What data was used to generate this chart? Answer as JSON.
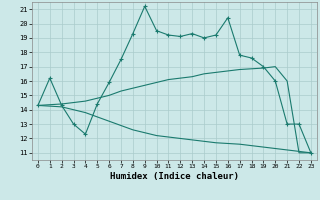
{
  "xlabel": "Humidex (Indice chaleur)",
  "xlim": [
    -0.5,
    23.5
  ],
  "ylim": [
    10.5,
    21.5
  ],
  "yticks": [
    11,
    12,
    13,
    14,
    15,
    16,
    17,
    18,
    19,
    20,
    21
  ],
  "xticks": [
    0,
    1,
    2,
    3,
    4,
    5,
    6,
    7,
    8,
    9,
    10,
    11,
    12,
    13,
    14,
    15,
    16,
    17,
    18,
    19,
    20,
    21,
    22,
    23
  ],
  "bg_color": "#cce8e8",
  "line_color": "#1a7a6e",
  "grid_color": "#aacccc",
  "line1_x": [
    0,
    1,
    2,
    3,
    4,
    5,
    6,
    7,
    8,
    9,
    10,
    11,
    12,
    13,
    14,
    15,
    16,
    17,
    18,
    19,
    20,
    21,
    22,
    23
  ],
  "line1_y": [
    14.3,
    16.2,
    14.3,
    13.0,
    12.3,
    14.4,
    15.9,
    17.5,
    19.3,
    21.2,
    19.5,
    19.2,
    19.1,
    19.3,
    19.0,
    19.2,
    20.4,
    17.8,
    17.6,
    17.0,
    16.0,
    13.0,
    13.0,
    11.0
  ],
  "line2_x": [
    0,
    2,
    3,
    4,
    5,
    6,
    7,
    8,
    9,
    10,
    11,
    12,
    13,
    14,
    15,
    16,
    17,
    18,
    19,
    20,
    21,
    22,
    23
  ],
  "line2_y": [
    14.3,
    14.4,
    14.5,
    14.6,
    14.8,
    15.0,
    15.3,
    15.5,
    15.7,
    15.9,
    16.1,
    16.2,
    16.3,
    16.5,
    16.6,
    16.7,
    16.8,
    16.85,
    16.9,
    17.0,
    16.0,
    11.0,
    11.0
  ],
  "line3_x": [
    0,
    2,
    3,
    4,
    5,
    6,
    7,
    8,
    9,
    10,
    11,
    12,
    13,
    14,
    15,
    16,
    17,
    18,
    19,
    20,
    21,
    22,
    23
  ],
  "line3_y": [
    14.3,
    14.2,
    14.0,
    13.8,
    13.5,
    13.2,
    12.9,
    12.6,
    12.4,
    12.2,
    12.1,
    12.0,
    11.9,
    11.8,
    11.7,
    11.65,
    11.6,
    11.5,
    11.4,
    11.3,
    11.2,
    11.1,
    11.0
  ]
}
